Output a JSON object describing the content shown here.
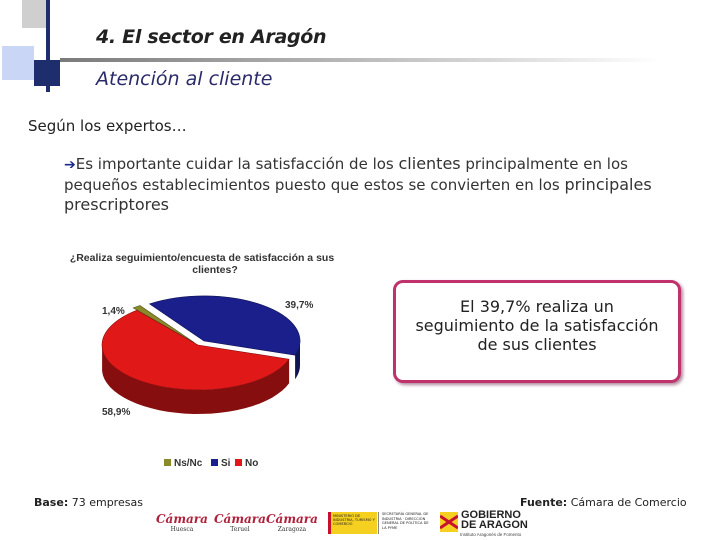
{
  "header": {
    "section_title": "4. El sector en Aragón",
    "subtitle": "Atención al cliente"
  },
  "body": {
    "intro": "Según los expertos…",
    "bullet_part1": "Es importante cuidar la satisfacción de los ",
    "bullet_highlight": "clientes",
    "bullet_part2": " principalmente en los pequeños establecimientos puesto que estos se convierten en los ",
    "bullet_highlight2": "principales prescriptores"
  },
  "chart_data": {
    "type": "pie",
    "title_line1": "¿Realiza seguimiento/encuesta de satisfacción a sus",
    "title_line2": "clientes?",
    "categories": [
      "Ns/Nc",
      "Si",
      "No"
    ],
    "values": [
      1.4,
      39.7,
      58.9
    ],
    "data_labels": [
      "1,4%",
      "39,7%",
      "58,9%"
    ],
    "colors": [
      "#8a8a2a",
      "#1a1f8c",
      "#e01818"
    ],
    "legend_position": "bottom"
  },
  "callout": {
    "text": "El 39,7% realiza un seguimiento de la satisfacción de sus clientes"
  },
  "footer": {
    "base_label": "Base:",
    "base_value": " 73 empresas",
    "source_label": "Fuente:",
    "source_value": " Cámara de Comercio"
  },
  "logos": {
    "camara": "Cámara",
    "huesca": "Huesca",
    "teruel": "Teruel",
    "zaragoza": "Zaragoza",
    "ministerio": "MINISTERIO DE INDUSTRIA, TURISMO Y COMERCIO",
    "secretaria": "SECRETARÍA GENERAL DE INDUSTRIA · DIRECCIÓN GENERAL DE POLÍTICA DE LA PYME",
    "gobierno_line1": "GOBIERNO",
    "gobierno_line2": "DE ARAGON",
    "gobierno_sub": "Instituto Aragonés de Fomento"
  }
}
